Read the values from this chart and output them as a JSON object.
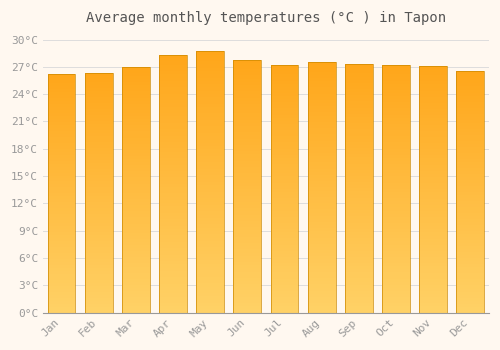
{
  "title": "Average monthly temperatures (°C ) in Tapon",
  "months": [
    "Jan",
    "Feb",
    "Mar",
    "Apr",
    "May",
    "Jun",
    "Jul",
    "Aug",
    "Sep",
    "Oct",
    "Nov",
    "Dec"
  ],
  "values": [
    26.2,
    26.3,
    27.0,
    28.3,
    28.7,
    27.8,
    27.2,
    27.5,
    27.3,
    27.2,
    27.1,
    26.5
  ],
  "bar_color": "#FFA500",
  "bar_color_top": "#F0A000",
  "bar_color_bottom": "#FFD080",
  "background_color": "#FFF8F0",
  "plot_bg_color": "#FFF8F0",
  "grid_color": "#DDDDDD",
  "tick_label_color": "#999999",
  "title_color": "#555555",
  "ylim": [
    0,
    31
  ],
  "ytick_values": [
    0,
    3,
    6,
    9,
    12,
    15,
    18,
    21,
    24,
    27,
    30
  ],
  "ytick_labels": [
    "0°C",
    "3°C",
    "6°C",
    "9°C",
    "12°C",
    "15°C",
    "18°C",
    "21°C",
    "24°C",
    "27°C",
    "30°C"
  ],
  "title_fontsize": 10,
  "tick_fontsize": 8,
  "bar_edge_color": "#CC8800",
  "bar_edge_width": 0.5,
  "bar_width": 0.75
}
